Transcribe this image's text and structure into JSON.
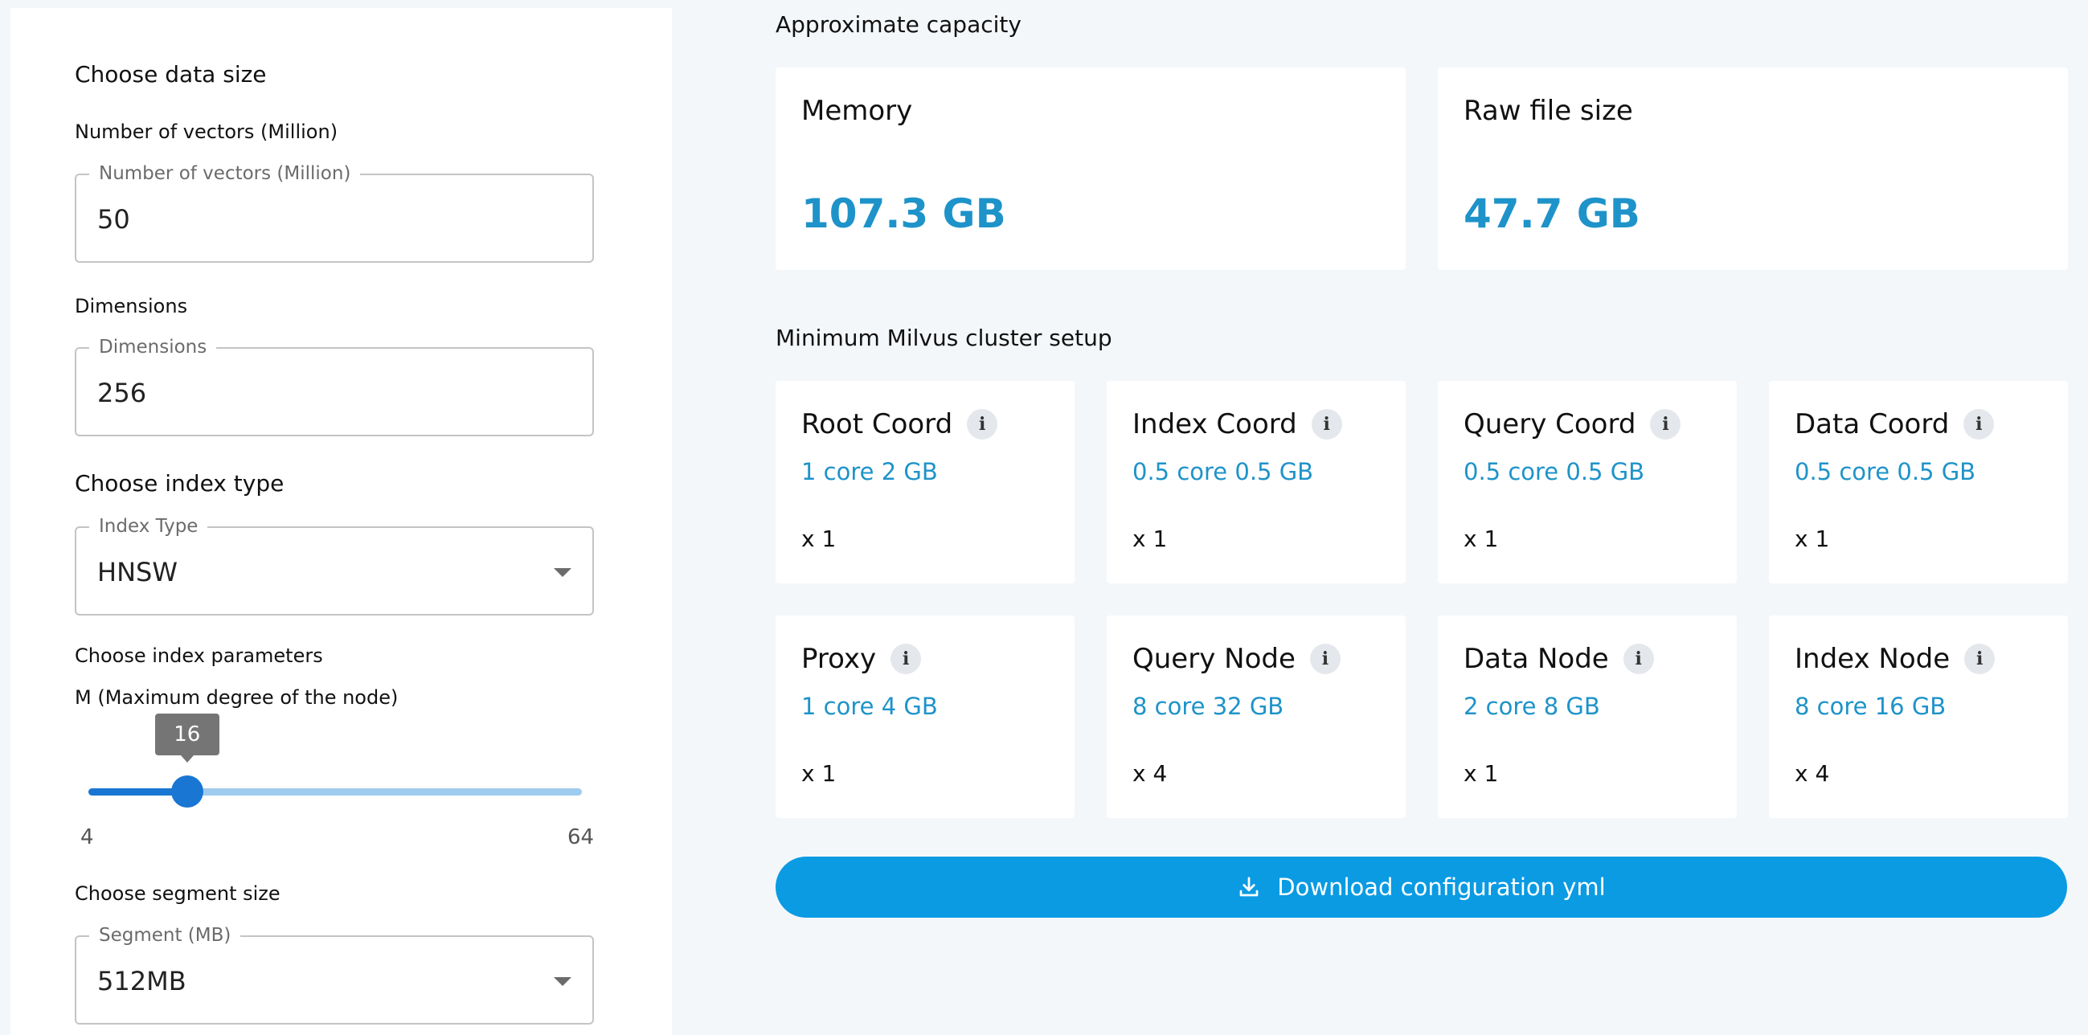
{
  "data_size": {
    "heading": "Choose data size",
    "vectors": {
      "caption": "Number of vectors (Million)",
      "legend": "Number of vectors (Million)",
      "value": "50"
    },
    "dimensions": {
      "caption": "Dimensions",
      "legend": "Dimensions",
      "value": "256"
    }
  },
  "index_type": {
    "heading": "Choose index type",
    "legend": "Index Type",
    "selected": "HNSW"
  },
  "index_params": {
    "heading": "Choose index parameters",
    "m_label": "M (Maximum degree of the node)",
    "m_value": "16",
    "m_min": "4",
    "m_max": "64",
    "m_fraction": 0.2
  },
  "segment": {
    "heading": "Choose segment size",
    "legend": "Segment (MB)",
    "selected": "512MB"
  },
  "capacity": {
    "heading": "Approximate capacity",
    "memory": {
      "title": "Memory",
      "value": "107.3 GB"
    },
    "raw_file": {
      "title": "Raw file size",
      "value": "47.7 GB"
    }
  },
  "cluster": {
    "heading": "Minimum Milvus cluster setup",
    "info_glyph": "i",
    "nodes": [
      {
        "title": "Root Coord",
        "spec": "1 core 2 GB",
        "count": "x  1"
      },
      {
        "title": "Index Coord",
        "spec": "0.5 core 0.5 GB",
        "count": "x  1"
      },
      {
        "title": "Query Coord",
        "spec": "0.5 core 0.5 GB",
        "count": "x  1"
      },
      {
        "title": "Data Coord",
        "spec": "0.5 core 0.5 GB",
        "count": "x  1"
      },
      {
        "title": "Proxy",
        "spec": "1 core 4 GB",
        "count": "x  1"
      },
      {
        "title": "Query Node",
        "spec": "8 core 32 GB",
        "count": "x  4"
      },
      {
        "title": "Data Node",
        "spec": "2 core 8 GB",
        "count": "x  1"
      },
      {
        "title": "Index Node",
        "spec": "8 core 16 GB",
        "count": "x  4"
      }
    ]
  },
  "download": {
    "label": "Download configuration yml",
    "icon": "download-icon"
  },
  "colors": {
    "accent_blue": "#1e93c9",
    "button_blue": "#0a9be3",
    "slider_blue": "#1976d2"
  }
}
